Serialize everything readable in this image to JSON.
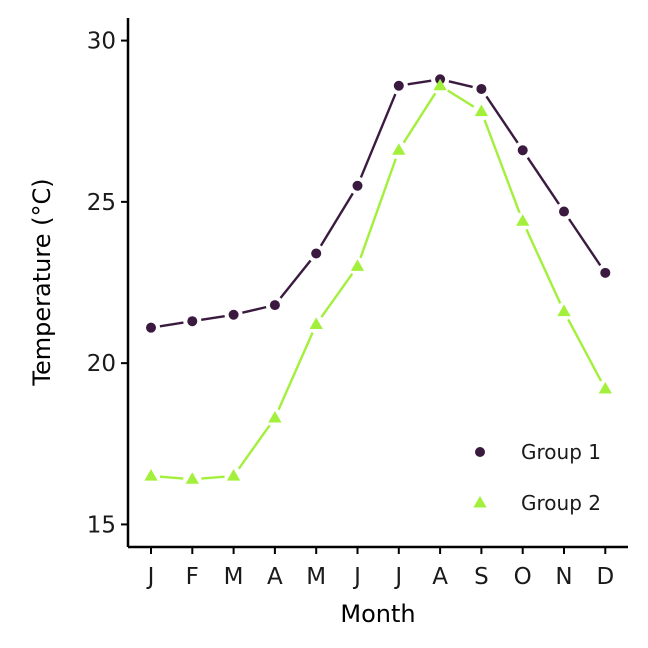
{
  "chart_data": {
    "type": "line",
    "xlabel": "Month",
    "ylabel": "Temperature (°C)",
    "categories": [
      "J",
      "F",
      "M",
      "A",
      "M",
      "J",
      "J",
      "A",
      "S",
      "O",
      "N",
      "D"
    ],
    "yticks": [
      15,
      20,
      25,
      30
    ],
    "ylim": [
      14.3,
      30.7
    ],
    "grid": false,
    "legend_position": "bottom-right",
    "series": [
      {
        "name": "Group 1",
        "marker": "circle",
        "color": "#3b1a40",
        "values": [
          21.1,
          21.3,
          21.5,
          21.8,
          23.4,
          25.5,
          28.6,
          28.8,
          28.5,
          26.6,
          24.7,
          22.8
        ]
      },
      {
        "name": "Group 2",
        "marker": "triangle",
        "color": "#a3f03c",
        "values": [
          16.5,
          16.4,
          16.5,
          18.3,
          21.2,
          23.0,
          26.6,
          28.6,
          27.8,
          24.4,
          21.6,
          19.2
        ]
      }
    ]
  }
}
